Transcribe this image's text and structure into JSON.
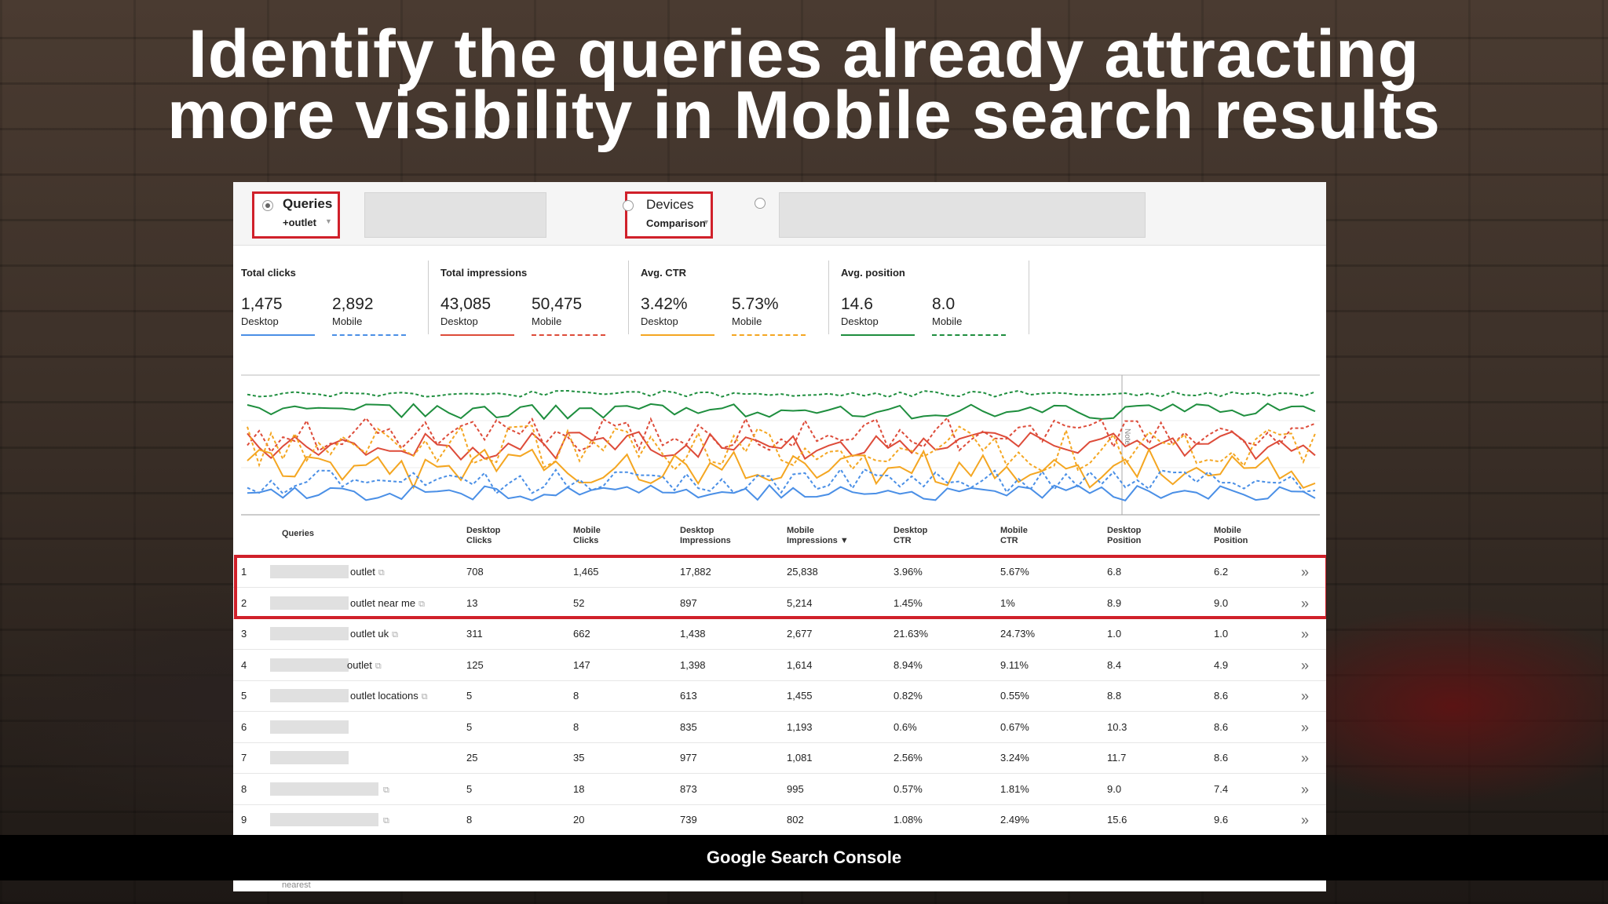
{
  "slide_title_line1": "Identify the queries already attracting",
  "slide_title_line2": "more visibility in Mobile search results",
  "caption": "Google Search Console",
  "filters": {
    "queries_label": "Queries",
    "queries_value": "+outlet",
    "devices_label": "Devices",
    "devices_value": "Comparison"
  },
  "metrics": [
    {
      "title": "Total clicks",
      "desktop": "1,475",
      "mobile": "2,892",
      "color": "#4a8fe6"
    },
    {
      "title": "Total impressions",
      "desktop": "43,085",
      "mobile": "50,475",
      "color": "#dd4b39"
    },
    {
      "title": "Avg. CTR",
      "desktop": "3.42%",
      "mobile": "5.73%",
      "color": "#f4a621"
    },
    {
      "title": "Avg. position",
      "desktop": "14.6",
      "mobile": "8.0",
      "color": "#1e8e3e"
    }
  ],
  "desktop_label": "Desktop",
  "mobile_label": "Mobile",
  "chart_note": "Note",
  "columns": {
    "queries": "Queries",
    "desktop_clicks_1": "Desktop",
    "desktop_clicks_2": "Clicks",
    "mobile_clicks_1": "Mobile",
    "mobile_clicks_2": "Clicks",
    "desktop_impr_1": "Desktop",
    "desktop_impr_2": "Impressions",
    "mobile_impr_1": "Mobile",
    "mobile_impr_2": "Impressions ▼",
    "desktop_ctr_1": "Desktop",
    "desktop_ctr_2": "CTR",
    "mobile_ctr_1": "Mobile",
    "mobile_ctr_2": "CTR",
    "desktop_pos_1": "Desktop",
    "desktop_pos_2": "Position",
    "mobile_pos_1": "Mobile",
    "mobile_pos_2": "Position"
  },
  "rows": [
    {
      "n": "1",
      "q": "outlet",
      "dc": "708",
      "mc": "1,465",
      "di": "17,882",
      "mi": "25,838",
      "dctr": "3.96%",
      "mctr": "5.67%",
      "dp": "6.8",
      "mp": "6.2"
    },
    {
      "n": "2",
      "q": "outlet near me",
      "dc": "13",
      "mc": "52",
      "di": "897",
      "mi": "5,214",
      "dctr": "1.45%",
      "mctr": "1%",
      "dp": "8.9",
      "mp": "9.0"
    },
    {
      "n": "3",
      "q": "outlet uk",
      "dc": "311",
      "mc": "662",
      "di": "1,438",
      "mi": "2,677",
      "dctr": "21.63%",
      "mctr": "24.73%",
      "dp": "1.0",
      "mp": "1.0"
    },
    {
      "n": "4",
      "q": "outlet",
      "dc": "125",
      "mc": "147",
      "di": "1,398",
      "mi": "1,614",
      "dctr": "8.94%",
      "mctr": "9.11%",
      "dp": "8.4",
      "mp": "4.9"
    },
    {
      "n": "5",
      "q": "outlet locations",
      "dc": "5",
      "mc": "8",
      "di": "613",
      "mi": "1,455",
      "dctr": "0.82%",
      "mctr": "0.55%",
      "dp": "8.8",
      "mp": "8.6"
    },
    {
      "n": "6",
      "q": "",
      "dc": "5",
      "mc": "8",
      "di": "835",
      "mi": "1,193",
      "dctr": "0.6%",
      "mctr": "0.67%",
      "dp": "10.3",
      "mp": "8.6"
    },
    {
      "n": "7",
      "q": "",
      "dc": "25",
      "mc": "35",
      "di": "977",
      "mi": "1,081",
      "dctr": "2.56%",
      "mctr": "3.24%",
      "dp": "11.7",
      "mp": "8.6"
    },
    {
      "n": "8",
      "q": "",
      "dc": "5",
      "mc": "18",
      "di": "873",
      "mi": "995",
      "dctr": "0.57%",
      "mctr": "1.81%",
      "dp": "9.0",
      "mp": "7.4"
    },
    {
      "n": "9",
      "q": "",
      "dc": "8",
      "mc": "20",
      "di": "739",
      "mi": "802",
      "dctr": "1.08%",
      "mctr": "2.49%",
      "dp": "15.6",
      "mp": "9.6"
    }
  ],
  "peek_row": "nearest"
}
